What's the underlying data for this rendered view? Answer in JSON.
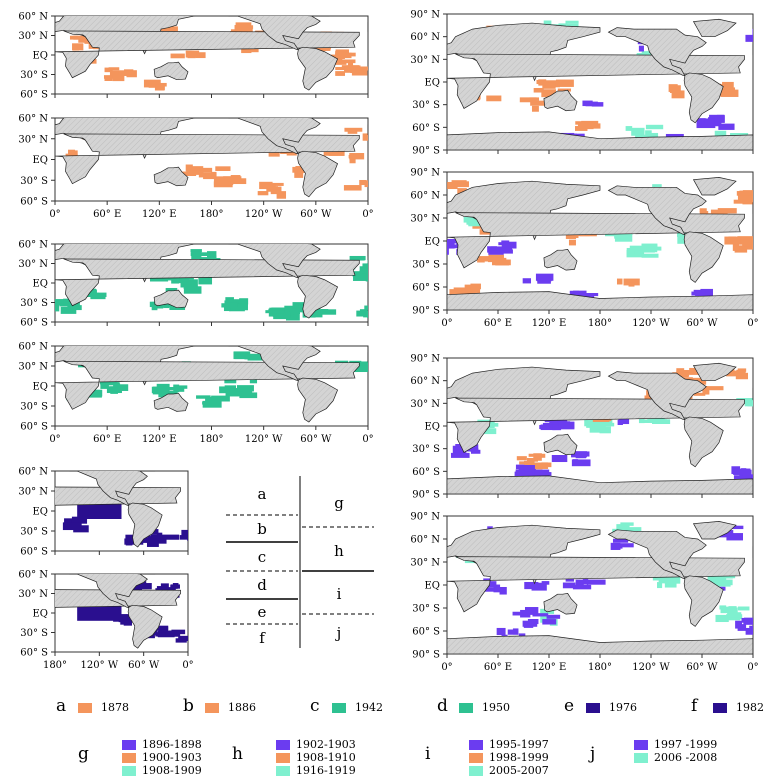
{
  "colors": {
    "land": "#d4d4d4",
    "land_hatch": "#bdbdbd",
    "orange": "#f4955c",
    "teal": "#2ec191",
    "indigo": "#2a0f8f",
    "violet": "#6b3cf0",
    "mint": "#7ff0cf",
    "axis": "#555555"
  },
  "axes": {
    "left_lat_ticks": [
      "60° N",
      "30° N",
      "EQ",
      "30° S",
      "60° S"
    ],
    "left_lon_ticks": [
      "0°",
      "60° E",
      "120° E",
      "180°",
      "120° W",
      "60° W",
      "0°"
    ],
    "right_lat_ticks": [
      "90° N",
      "60° N",
      "30° N",
      "EQ",
      "30° S",
      "60° S",
      "90° S"
    ],
    "right_lon_ticks": [
      "0°",
      "60° E",
      "120° E",
      "180°",
      "120° W",
      "60° W",
      "0°"
    ],
    "small_lon_ticks": [
      "180°",
      "120° W",
      "60° W",
      "0°"
    ]
  },
  "key_diagram": {
    "left": [
      "a",
      "b",
      "c",
      "d",
      "e",
      "f"
    ],
    "right": [
      "g",
      "h",
      "i",
      "j"
    ]
  },
  "legend": {
    "single": [
      {
        "letter": "a",
        "year": "1878",
        "color": "orange"
      },
      {
        "letter": "b",
        "year": "1886",
        "color": "orange"
      },
      {
        "letter": "c",
        "year": "1942",
        "color": "teal"
      },
      {
        "letter": "d",
        "year": "1950",
        "color": "teal"
      },
      {
        "letter": "e",
        "year": "1976",
        "color": "indigo"
      },
      {
        "letter": "f",
        "year": "1982",
        "color": "indigo"
      }
    ],
    "groups": [
      {
        "letter": "g",
        "items": [
          {
            "label": "1896-1898",
            "color": "violet"
          },
          {
            "label": "1900-1903",
            "color": "orange"
          },
          {
            "label": "1908-1909",
            "color": "mint"
          }
        ]
      },
      {
        "letter": "h",
        "items": [
          {
            "label": "1902-1903",
            "color": "violet"
          },
          {
            "label": "1908-1910",
            "color": "orange"
          },
          {
            "label": "1916-1919",
            "color": "mint"
          }
        ]
      },
      {
        "letter": "i",
        "items": [
          {
            "label": "1995-1997",
            "color": "violet"
          },
          {
            "label": "1998-1999",
            "color": "orange"
          },
          {
            "label": "2005-2007",
            "color": "mint"
          }
        ]
      },
      {
        "letter": "j",
        "items": [
          {
            "label": "1997 -1999",
            "color": "violet"
          },
          {
            "label": "2006 -2008",
            "color": "mint"
          }
        ]
      }
    ]
  }
}
